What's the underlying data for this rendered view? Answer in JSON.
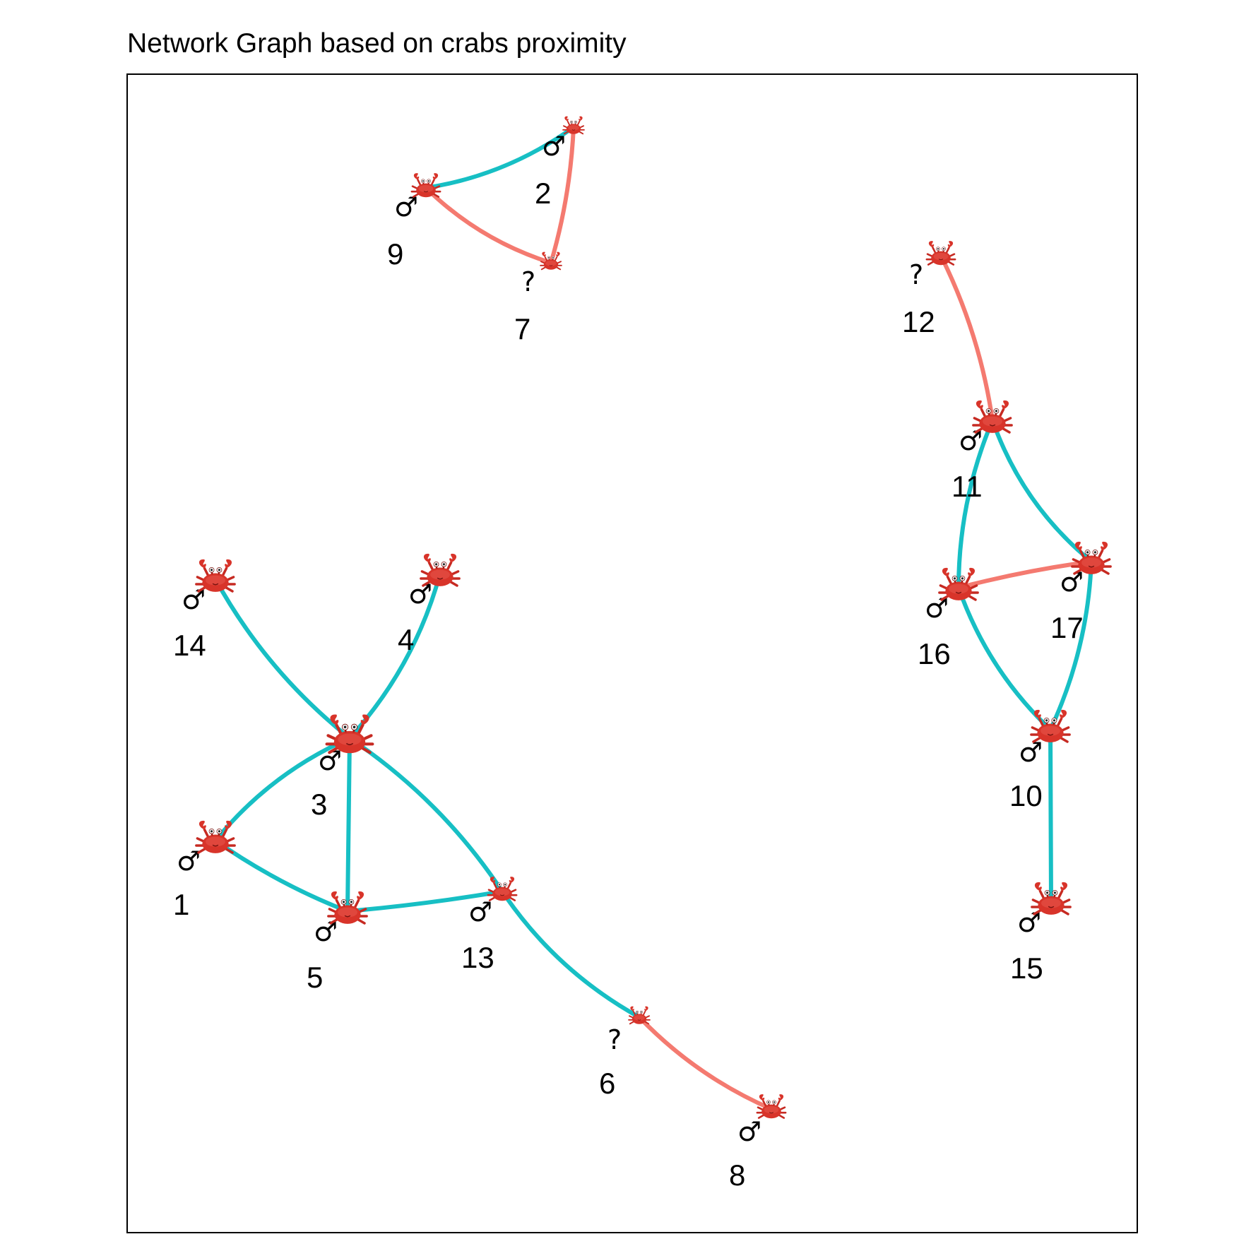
{
  "title": "Network Graph based on crabs proximity",
  "colors": {
    "edge_teal": "#17BFC4",
    "edge_salmon": "#F47A70",
    "crab_body": "#D8342A",
    "crab_dark": "#A81C16",
    "frame": "#000000"
  },
  "legend_symbols": {
    "male": "♂",
    "unknown": "?"
  },
  "nodes": [
    {
      "id": "1",
      "sex": "♂",
      "icon": "crab-icon",
      "size": "large"
    },
    {
      "id": "2",
      "sex": "♂",
      "icon": "crab-icon",
      "size": "small"
    },
    {
      "id": "3",
      "sex": "♂",
      "icon": "crab-icon",
      "size": "xlarge"
    },
    {
      "id": "4",
      "sex": "♂",
      "icon": "crab-icon",
      "size": "large"
    },
    {
      "id": "5",
      "sex": "♂",
      "icon": "crab-icon",
      "size": "large"
    },
    {
      "id": "6",
      "sex": "?",
      "icon": "crab-icon",
      "size": "small"
    },
    {
      "id": "7",
      "sex": "?",
      "icon": "crab-icon",
      "size": "small"
    },
    {
      "id": "8",
      "sex": "♂",
      "icon": "crab-icon",
      "size": "medium"
    },
    {
      "id": "9",
      "sex": "♂",
      "icon": "crab-icon",
      "size": "medium"
    },
    {
      "id": "10",
      "sex": "♂",
      "icon": "crab-icon",
      "size": "large"
    },
    {
      "id": "11",
      "sex": "♂",
      "icon": "crab-icon",
      "size": "large"
    },
    {
      "id": "12",
      "sex": "?",
      "icon": "crab-icon",
      "size": "medium"
    },
    {
      "id": "13",
      "sex": "♂",
      "icon": "crab-icon",
      "size": "medium"
    },
    {
      "id": "14",
      "sex": "♂",
      "icon": "crab-icon",
      "size": "large"
    },
    {
      "id": "15",
      "sex": "♂",
      "icon": "crab-icon",
      "size": "large"
    },
    {
      "id": "16",
      "sex": "♂",
      "icon": "crab-icon",
      "size": "large"
    },
    {
      "id": "17",
      "sex": "♂",
      "icon": "crab-icon",
      "size": "large"
    }
  ],
  "edges": [
    {
      "from": "9",
      "to": "2",
      "color": "teal"
    },
    {
      "from": "2",
      "to": "7",
      "color": "salmon"
    },
    {
      "from": "9",
      "to": "7",
      "color": "salmon"
    },
    {
      "from": "14",
      "to": "3",
      "color": "teal"
    },
    {
      "from": "4",
      "to": "3",
      "color": "teal"
    },
    {
      "from": "3",
      "to": "1",
      "color": "teal"
    },
    {
      "from": "3",
      "to": "5",
      "color": "teal"
    },
    {
      "from": "3",
      "to": "13",
      "color": "teal"
    },
    {
      "from": "1",
      "to": "5",
      "color": "teal"
    },
    {
      "from": "5",
      "to": "13",
      "color": "teal"
    },
    {
      "from": "13",
      "to": "6",
      "color": "teal"
    },
    {
      "from": "6",
      "to": "8",
      "color": "salmon"
    },
    {
      "from": "12",
      "to": "11",
      "color": "salmon"
    },
    {
      "from": "11",
      "to": "16",
      "color": "teal"
    },
    {
      "from": "11",
      "to": "17",
      "color": "teal"
    },
    {
      "from": "16",
      "to": "17",
      "color": "salmon"
    },
    {
      "from": "16",
      "to": "10",
      "color": "teal"
    },
    {
      "from": "17",
      "to": "10",
      "color": "teal"
    },
    {
      "from": "10",
      "to": "15",
      "color": "teal"
    }
  ]
}
